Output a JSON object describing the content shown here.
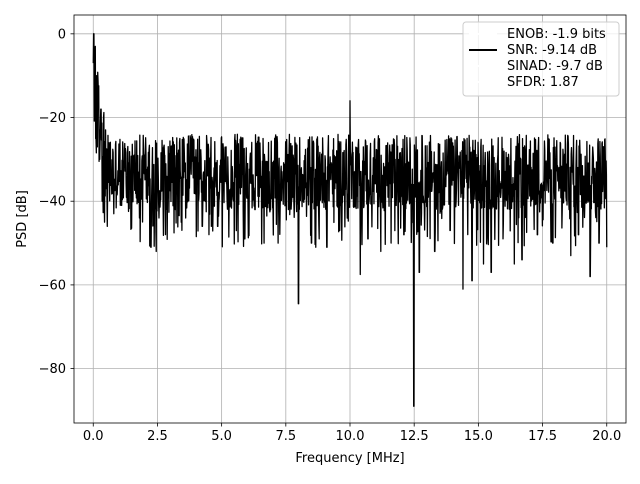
{
  "chart_data": {
    "type": "line",
    "title": "",
    "xlabel": "Frequency [MHz]",
    "ylabel": "PSD [dB]",
    "xlim": [
      -0.75,
      20.75
    ],
    "ylim": [
      -93,
      4.5
    ],
    "xticks": [
      0.0,
      2.5,
      5.0,
      7.5,
      10.0,
      12.5,
      15.0,
      17.5,
      20.0
    ],
    "xtick_labels": [
      "0.0",
      "2.5",
      "5.0",
      "7.5",
      "10.0",
      "12.5",
      "15.0",
      "17.5",
      "20.0"
    ],
    "yticks": [
      0,
      -20,
      -40,
      -60,
      -80
    ],
    "ytick_labels": [
      "0",
      "−20",
      "−40",
      "−60",
      "−80"
    ],
    "grid": true,
    "legend_position": "top-right",
    "legend_entries": [
      {
        "label": "ENOB: -1.9 bits",
        "color": "#ffffff",
        "marker": "none"
      },
      {
        "label": "SNR: -9.14 dB",
        "color": "#000000",
        "marker": "line"
      },
      {
        "label": "SINAD: -9.7 dB",
        "color": "#ffffff",
        "marker": "none"
      },
      {
        "label": "SFDR: 1.87",
        "color": "#ffffff",
        "marker": "none"
      }
    ],
    "series": [
      {
        "color": "#000000",
        "description_points": [
          [
            0.0,
            -7
          ],
          [
            0.02,
            0
          ],
          [
            0.05,
            -12
          ],
          [
            0.08,
            -3
          ],
          [
            0.1,
            -25
          ],
          [
            0.13,
            -10
          ],
          [
            0.16,
            -27
          ],
          [
            0.2,
            -15
          ],
          [
            0.25,
            -30
          ],
          [
            0.3,
            -18
          ],
          [
            0.35,
            -40
          ],
          [
            0.4,
            -20
          ],
          [
            0.5,
            -37
          ],
          [
            0.55,
            -46
          ],
          [
            0.8,
            -43
          ],
          [
            1.1,
            -41
          ],
          [
            1.8,
            -44
          ],
          [
            2.0,
            -29
          ],
          [
            2.25,
            -51
          ],
          [
            2.45,
            -52
          ],
          [
            2.8,
            -41
          ],
          [
            3.2,
            -42
          ],
          [
            3.6,
            -44
          ],
          [
            4.25,
            -46
          ],
          [
            4.6,
            -46
          ],
          [
            4.85,
            -46
          ],
          [
            5.9,
            -49
          ],
          [
            6.3,
            -42
          ],
          [
            6.9,
            -42
          ],
          [
            7.2,
            -50
          ],
          [
            7.6,
            -42
          ],
          [
            7.99,
            -64.5
          ],
          [
            8.5,
            -50
          ],
          [
            8.8,
            -49
          ],
          [
            9.1,
            -51
          ],
          [
            9.6,
            -47
          ],
          [
            10.0,
            -16
          ],
          [
            10.4,
            -57.5
          ],
          [
            10.7,
            -49
          ],
          [
            11.2,
            -52
          ],
          [
            11.6,
            -50
          ],
          [
            12.1,
            -48
          ],
          [
            12.49,
            -89
          ],
          [
            12.7,
            -57
          ],
          [
            13.3,
            -52
          ],
          [
            13.9,
            -47
          ],
          [
            14.4,
            -61
          ],
          [
            14.75,
            -59
          ],
          [
            15.2,
            -55
          ],
          [
            15.5,
            -57
          ],
          [
            16.4,
            -55
          ],
          [
            16.7,
            -54
          ],
          [
            17.3,
            -48
          ],
          [
            17.9,
            -50
          ],
          [
            18.6,
            -53
          ],
          [
            18.9,
            -48
          ],
          [
            19.35,
            -58
          ],
          [
            19.7,
            -50
          ],
          [
            20.0,
            -51
          ]
        ]
      }
    ]
  }
}
